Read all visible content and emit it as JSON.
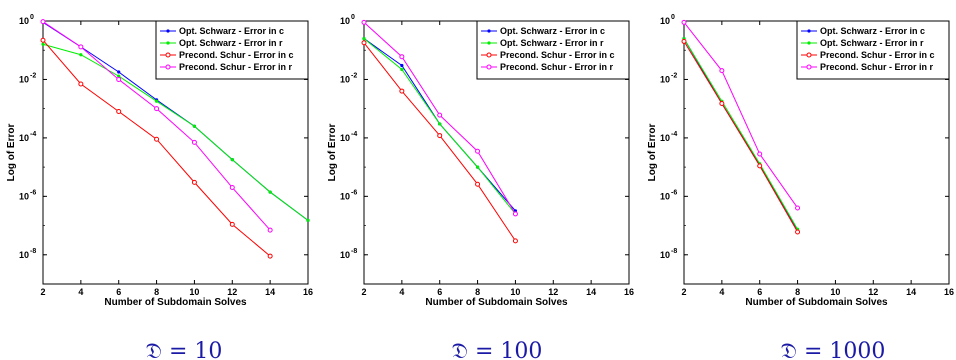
{
  "chart_data": [
    {
      "type": "line",
      "caption": "𝔇 = 10",
      "xlabel": "Number of Subdomain Solves",
      "ylabel": "Log of Error",
      "xlim": [
        2,
        16
      ],
      "ylim": [
        1e-09,
        1
      ],
      "yscale": "log",
      "xticks": [
        "2",
        "4",
        "6",
        "8",
        "10",
        "12",
        "14",
        "16"
      ],
      "yticks": [
        [
          "10",
          "0"
        ],
        [
          "10",
          "-2"
        ],
        [
          "10",
          "-4"
        ],
        [
          "10",
          "-6"
        ],
        [
          "10",
          "-8"
        ]
      ],
      "grid": false,
      "legend_position": "top-right",
      "series": [
        {
          "name": "Opt. Schwarz - Error in c",
          "color": "#0000ff",
          "marker": "dot",
          "x": [
            2,
            4,
            6,
            8,
            10,
            12,
            14,
            16
          ],
          "y": [
            0.9,
            0.13,
            0.018,
            0.002,
            0.00025,
            1.8e-05,
            1.4e-06,
            1.5e-07
          ]
        },
        {
          "name": "Opt. Schwarz - Error in r",
          "color": "#00ee00",
          "marker": "dot",
          "x": [
            2,
            4,
            6,
            8,
            10,
            12,
            14,
            16
          ],
          "y": [
            0.16,
            0.07,
            0.013,
            0.0018,
            0.00025,
            1.8e-05,
            1.4e-06,
            1.5e-07
          ]
        },
        {
          "name": "Precond. Schur - Error in c",
          "color": "#ff0000",
          "marker": "circle",
          "x": [
            2,
            4,
            6,
            8,
            10,
            12,
            14
          ],
          "y": [
            0.22,
            0.007,
            0.0008,
            9e-05,
            3e-06,
            1.1e-07,
            9e-09
          ]
        },
        {
          "name": "Precond. Schur - Error in r",
          "color": "#ff00ff",
          "marker": "circle",
          "x": [
            2,
            4,
            6,
            8,
            10,
            12,
            14
          ],
          "y": [
            0.95,
            0.13,
            0.01,
            0.001,
            7e-05,
            2e-06,
            7e-08
          ]
        }
      ]
    },
    {
      "type": "line",
      "caption": "𝔇 = 100",
      "xlabel": "Number of Subdomain Solves",
      "ylabel": "Log of Error",
      "xlim": [
        2,
        16
      ],
      "ylim": [
        1e-09,
        1
      ],
      "yscale": "log",
      "xticks": [
        "2",
        "4",
        "6",
        "8",
        "10",
        "12",
        "14",
        "16"
      ],
      "yticks": [
        [
          "10",
          "0"
        ],
        [
          "10",
          "-2"
        ],
        [
          "10",
          "-4"
        ],
        [
          "10",
          "-6"
        ],
        [
          "10",
          "-8"
        ]
      ],
      "grid": false,
      "legend_position": "top-right",
      "series": [
        {
          "name": "Opt. Schwarz - Error in c",
          "color": "#0000ff",
          "marker": "dot",
          "x": [
            2,
            4,
            6,
            8,
            10
          ],
          "y": [
            0.25,
            0.03,
            0.0003,
            1e-05,
            3.2e-07
          ]
        },
        {
          "name": "Opt. Schwarz - Error in r",
          "color": "#00ee00",
          "marker": "dot",
          "x": [
            2,
            4,
            6,
            8,
            10
          ],
          "y": [
            0.25,
            0.022,
            0.0003,
            1e-05,
            2.5e-07
          ]
        },
        {
          "name": "Precond. Schur - Error in c",
          "color": "#ff0000",
          "marker": "circle",
          "x": [
            2,
            4,
            6,
            8,
            10
          ],
          "y": [
            0.18,
            0.004,
            0.00012,
            2.6e-06,
            3e-08
          ]
        },
        {
          "name": "Precond. Schur - Error in r",
          "color": "#ff00ff",
          "marker": "circle",
          "x": [
            2,
            4,
            6,
            8,
            10
          ],
          "y": [
            0.9,
            0.06,
            0.0006,
            3.5e-05,
            2.5e-07
          ]
        }
      ]
    },
    {
      "type": "line",
      "caption": "𝔇 = 1000",
      "xlabel": "Number of Subdomain Solves",
      "ylabel": "Log of Error",
      "xlim": [
        2,
        16
      ],
      "ylim": [
        1e-09,
        1
      ],
      "yscale": "log",
      "xticks": [
        "2",
        "4",
        "6",
        "8",
        "10",
        "12",
        "14",
        "16"
      ],
      "yticks": [
        [
          "10",
          "0"
        ],
        [
          "10",
          "-2"
        ],
        [
          "10",
          "-4"
        ],
        [
          "10",
          "-6"
        ],
        [
          "10",
          "-8"
        ]
      ],
      "grid": false,
      "legend_position": "top-right",
      "series": [
        {
          "name": "Opt. Schwarz - Error in c",
          "color": "#0000ff",
          "marker": "dot",
          "x": [
            2,
            4,
            6,
            8
          ],
          "y": [
            0.25,
            0.0015,
            1.2e-05,
            7e-08
          ]
        },
        {
          "name": "Opt. Schwarz - Error in r",
          "color": "#00ee00",
          "marker": "dot",
          "x": [
            2,
            4,
            6,
            8
          ],
          "y": [
            0.25,
            0.0018,
            1.3e-05,
            7.5e-08
          ]
        },
        {
          "name": "Precond. Schur - Error in c",
          "color": "#ff0000",
          "marker": "circle",
          "x": [
            2,
            4,
            6,
            8
          ],
          "y": [
            0.2,
            0.0015,
            1.1e-05,
            6e-08
          ]
        },
        {
          "name": "Precond. Schur - Error in r",
          "color": "#ff00ff",
          "marker": "circle",
          "x": [
            2,
            4,
            6,
            8
          ],
          "y": [
            0.9,
            0.02,
            2.8e-05,
            4e-07
          ]
        }
      ]
    }
  ]
}
